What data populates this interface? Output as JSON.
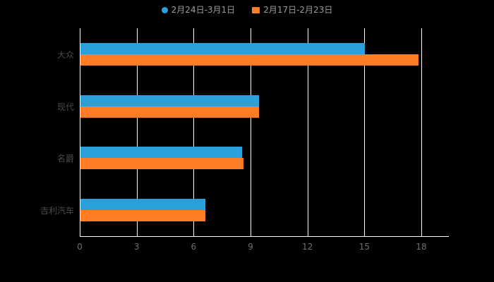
{
  "page": {
    "background": "#000000"
  },
  "legend": {
    "items": [
      {
        "label": "2月24日-3月1日",
        "color": "#2BA0DB",
        "marker": "circle"
      },
      {
        "label": "2月17日-2月23日",
        "color": "#FF7D26",
        "marker": "rect"
      }
    ]
  },
  "chart_data": {
    "type": "bar",
    "orientation": "horizontal",
    "title": "",
    "xlabel": "",
    "ylabel": "",
    "categories": [
      "大众",
      "现代",
      "名爵",
      "吉利汽车"
    ],
    "series": [
      {
        "name": "2月24日-3月1日",
        "color": "#2BA0DB",
        "values": [
          15,
          9.4,
          8.5,
          6.6
        ]
      },
      {
        "name": "2月17日-2月23日",
        "color": "#FF7D26",
        "values": [
          17.8,
          9.4,
          8.6,
          6.6
        ]
      }
    ],
    "x_ticks": [
      0,
      3,
      6,
      9,
      12,
      15,
      18
    ],
    "xlim": [
      0,
      19.4
    ],
    "grid": true,
    "legend_position": "top",
    "colors": {
      "axis_line": "#ffffff",
      "grid_line": "#ffffff",
      "category_label": "#4a4a4a",
      "tick_label": "#707070",
      "legend_text": "#9a9a9a",
      "background": "#000000"
    }
  }
}
